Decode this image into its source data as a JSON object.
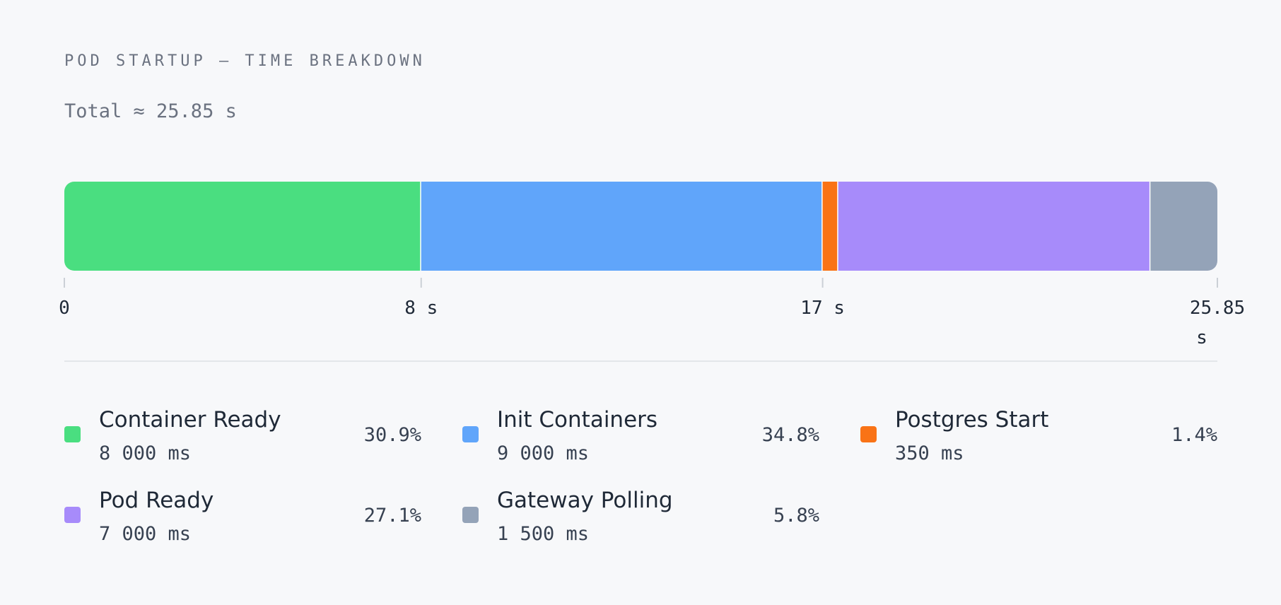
{
  "header": {
    "title": "POD STARTUP — TIME BREAKDOWN",
    "subtitle": "Total ≈ 25.85 s"
  },
  "chart_data": {
    "type": "bar",
    "orientation": "horizontal-stacked",
    "unit": "ms",
    "total_ms": 25850,
    "xlim": [
      0,
      25850
    ],
    "segments": [
      {
        "name": "Container Ready",
        "value": 8000,
        "percent": "30.9%",
        "value_label": "8 000 ms",
        "color": "#4ade80"
      },
      {
        "name": "Init Containers",
        "value": 9000,
        "percent": "34.8%",
        "value_label": "9 000 ms",
        "color": "#60a5fa"
      },
      {
        "name": "Postgres Start",
        "value": 350,
        "percent": "1.4%",
        "value_label": "350 ms",
        "color": "#f97316"
      },
      {
        "name": "Pod Ready",
        "value": 7000,
        "percent": "27.1%",
        "value_label": "7 000 ms",
        "color": "#a78bfa"
      },
      {
        "name": "Gateway Polling",
        "value": 1500,
        "percent": "5.8%",
        "value_label": "1 500 ms",
        "color": "#94a3b8"
      }
    ],
    "ticks": [
      {
        "value": 0,
        "label": "0"
      },
      {
        "value": 8000,
        "label": "8 s"
      },
      {
        "value": 17000,
        "label": "17 s"
      },
      {
        "value": 25850,
        "label": "25.85 s"
      }
    ]
  }
}
